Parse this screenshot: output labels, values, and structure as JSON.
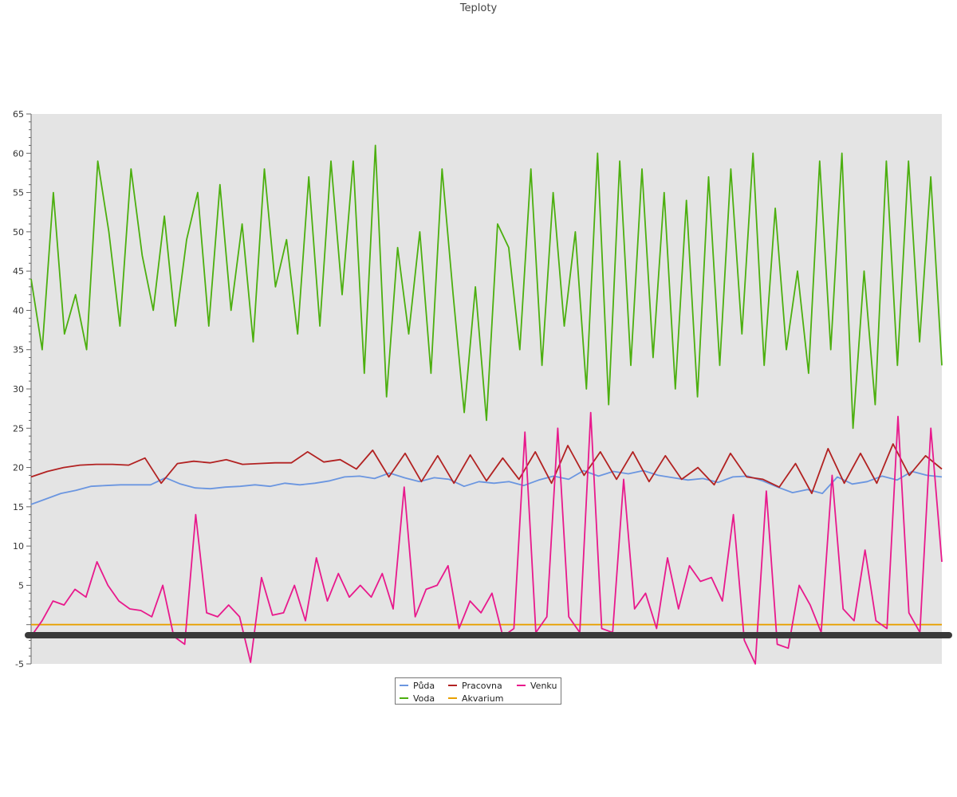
{
  "chart_data": {
    "type": "line",
    "title": "Teploty",
    "xlabel": "",
    "ylabel": "",
    "ylim": [
      -5,
      65
    ],
    "yticks": [
      -5,
      5,
      10,
      15,
      20,
      25,
      30,
      35,
      40,
      45,
      50,
      55,
      60,
      65
    ],
    "x_tick_labels": [],
    "grid": false,
    "legend_position": "bottom-center",
    "plot_background": "#e4e4e4",
    "zero_line_color": "#3a3a3a",
    "series": [
      {
        "name": "Půda",
        "color": "#6b96e0",
        "values": [
          15.3,
          16.0,
          16.7,
          17.1,
          17.6,
          17.7,
          17.8,
          17.8,
          17.8,
          18.7,
          17.9,
          17.4,
          17.3,
          17.5,
          17.6,
          17.8,
          17.6,
          18.0,
          17.8,
          18.0,
          18.3,
          18.8,
          18.9,
          18.6,
          19.3,
          18.7,
          18.2,
          18.7,
          18.5,
          17.6,
          18.2,
          18.0,
          18.2,
          17.7,
          18.4,
          18.9,
          18.5,
          19.6,
          18.9,
          19.5,
          19.2,
          19.6,
          19.0,
          18.7,
          18.4,
          18.6,
          18.1,
          18.8,
          18.9,
          18.3,
          17.5,
          16.8,
          17.2,
          16.7,
          18.8,
          17.9,
          18.2,
          18.9,
          18.4,
          19.5,
          19.0,
          18.8
        ]
      },
      {
        "name": "Voda",
        "color": "#4caf0f",
        "values": [
          44,
          35,
          55,
          37,
          42,
          35,
          59,
          50,
          38,
          58,
          47,
          40,
          52,
          38,
          49,
          55,
          38,
          56,
          40,
          51,
          36,
          58,
          43,
          49,
          37,
          57,
          38,
          59,
          42,
          59,
          32,
          61,
          29,
          48,
          37,
          50,
          32,
          58,
          42,
          27,
          43,
          26,
          51,
          48,
          35,
          58,
          33,
          55,
          38,
          50,
          30,
          60,
          28,
          59,
          33,
          58,
          34,
          55,
          30,
          54,
          29,
          57,
          33,
          58,
          37,
          60,
          33,
          53,
          35,
          45,
          32,
          59,
          35,
          60,
          25,
          45,
          28,
          59,
          33,
          59,
          36,
          57,
          33
        ]
      },
      {
        "name": "Pracovna",
        "color": "#b22222",
        "values": [
          18.8,
          19.5,
          20.0,
          20.3,
          20.4,
          20.4,
          20.3,
          21.2,
          18.0,
          20.5,
          20.8,
          20.6,
          21.0,
          20.4,
          20.5,
          20.6,
          20.6,
          22.0,
          20.7,
          21.0,
          19.8,
          22.2,
          18.8,
          21.8,
          18.2,
          21.5,
          18.0,
          21.6,
          18.3,
          21.2,
          18.5,
          22.0,
          18.0,
          22.8,
          19.0,
          22.0,
          18.5,
          22.0,
          18.2,
          21.5,
          18.5,
          20.0,
          17.8,
          21.8,
          18.8,
          18.5,
          17.5,
          20.5,
          16.7,
          22.4,
          18.0,
          21.8,
          18.0,
          23.0,
          19.0,
          21.5,
          19.8
        ]
      },
      {
        "name": "Akvarium",
        "color": "#e8a000",
        "values": [
          0.0,
          0.0
        ]
      },
      {
        "name": "Venku",
        "color": "#e8198c",
        "values": [
          -1.5,
          0.5,
          3.0,
          2.5,
          4.5,
          3.5,
          8.0,
          5.0,
          3.0,
          2.0,
          1.8,
          1.0,
          5.0,
          -1.5,
          -2.5,
          14.0,
          1.5,
          1.0,
          2.5,
          1.0,
          -4.8,
          6.0,
          1.2,
          1.5,
          5.0,
          0.5,
          8.5,
          3.0,
          6.5,
          3.5,
          5.0,
          3.5,
          6.5,
          2.0,
          17.5,
          1.0,
          4.5,
          5.0,
          7.5,
          -0.5,
          3.0,
          1.5,
          4.0,
          -1.5,
          -0.5,
          24.5,
          -1.0,
          1.0,
          25.0,
          1.0,
          -1.0,
          27.0,
          -0.5,
          -1.0,
          18.5,
          2.0,
          4.0,
          -0.5,
          8.5,
          2.0,
          7.5,
          5.5,
          6.0,
          3.0,
          14.0,
          -2.0,
          -5.0,
          17.0,
          -2.5,
          -3.0,
          5.0,
          2.5,
          -1.0,
          19.0,
          2.0,
          0.5,
          9.5,
          0.5,
          -0.5,
          26.5,
          1.5,
          -1.0,
          25.0,
          8.0
        ]
      }
    ]
  }
}
